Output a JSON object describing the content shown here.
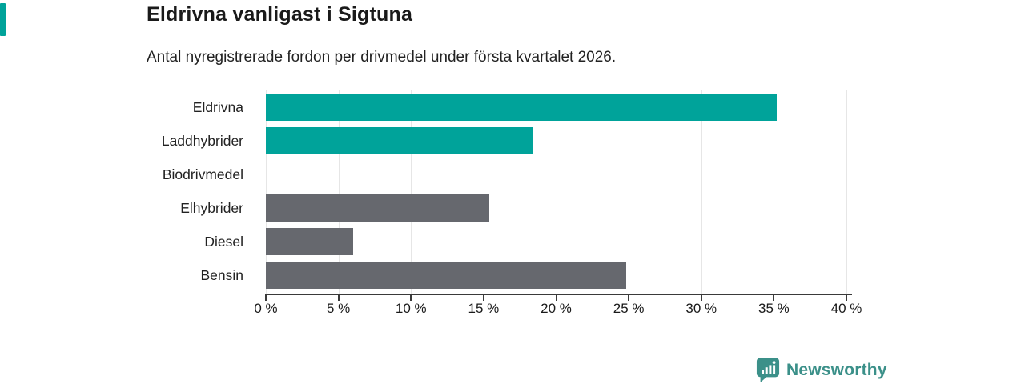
{
  "header": {
    "title": "Eldrivna vanligast i Sigtuna",
    "subtitle": "Antal nyregistrerade fordon per drivmedel under första kvartalet 2026."
  },
  "chart_data": {
    "type": "bar",
    "orientation": "horizontal",
    "title": "Eldrivna vanligast i Sigtuna",
    "subtitle": "Antal nyregistrerade fordon per drivmedel under första kvartalet 2026.",
    "categories": [
      "Eldrivna",
      "Laddhybrider",
      "Biodrivmedel",
      "Elhybrider",
      "Diesel",
      "Bensin"
    ],
    "values": [
      35.2,
      18.4,
      0,
      15.4,
      6,
      24.8
    ],
    "unit": "%",
    "bar_colors": [
      "#00a39a",
      "#00a39a",
      "#00a39a",
      "#66686e",
      "#66686e",
      "#66686e"
    ],
    "xlabel": "",
    "ylabel": "",
    "xlim": [
      0,
      40
    ],
    "x_tick_values": [
      0,
      5,
      10,
      15,
      20,
      25,
      30,
      35,
      40
    ],
    "x_tick_labels": [
      "0 %",
      "5 %",
      "10 %",
      "15 %",
      "20 %",
      "25 %",
      "30 %",
      "35 %",
      "40 %"
    ],
    "grid": "vertical-only",
    "legend": "none"
  },
  "footer": {
    "brand": "Newsworthy",
    "logo_icon": "bar-chart-speech-bubble-icon"
  },
  "colors": {
    "accent_teal": "#00a39a",
    "bar_gray": "#66686e",
    "brand_teal": "#3b9089",
    "grid": "#e6e6e6",
    "axis": "#3a3a3a",
    "text": "#1a1a1a"
  }
}
